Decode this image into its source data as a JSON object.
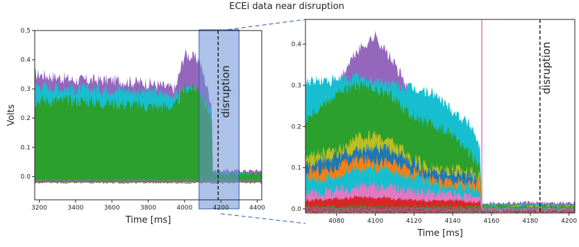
{
  "title": "ECEi data near disruption",
  "chart_data": [
    {
      "type": "line",
      "title": "",
      "xlabel": "Time [ms]",
      "ylabel": "Volts",
      "xlim": [
        3175,
        4425
      ],
      "ylim": [
        -0.08,
        0.5
      ],
      "xticks": [
        3200,
        3400,
        3600,
        3800,
        4000,
        4200,
        4400
      ],
      "yticks": [
        0.0,
        0.1,
        0.2,
        0.3,
        0.4,
        0.5
      ],
      "grid": false,
      "highlight_window": [
        4080,
        4300
      ],
      "disruption_time": 4185,
      "annotation": "disruption",
      "series_colors": [
        "#9467bd",
        "#17becf",
        "#2ca02c",
        "#bcbd22",
        "#1f77b4",
        "#d62728",
        "#ff7f0e",
        "#e377c2",
        "#8c564b",
        "#7f7f7f"
      ],
      "series_envelopes": [
        {
          "color": "#9467bd",
          "x": [
            3200,
            3400,
            3600,
            3800,
            3950,
            4000,
            4080,
            4150,
            4155,
            4400
          ],
          "y": [
            0.35,
            0.33,
            0.33,
            0.32,
            0.3,
            0.42,
            0.4,
            0.25,
            0.02,
            0.02
          ]
        },
        {
          "color": "#17becf",
          "x": [
            3200,
            3400,
            3600,
            3800,
            3950,
            4000,
            4080,
            4150,
            4155,
            4400
          ],
          "y": [
            0.31,
            0.3,
            0.3,
            0.29,
            0.28,
            0.3,
            0.28,
            0.22,
            0.01,
            0.01
          ]
        },
        {
          "color": "#2ca02c",
          "x": [
            3200,
            3400,
            3600,
            3800,
            3950,
            4000,
            4080,
            4150,
            4155,
            4400
          ],
          "y": [
            0.26,
            0.26,
            0.25,
            0.24,
            0.24,
            0.3,
            0.3,
            0.2,
            0.01,
            0.01
          ]
        }
      ]
    },
    {
      "type": "line",
      "title": "",
      "xlabel": "Time [ms]",
      "ylabel": "",
      "xlim": [
        4064,
        4203
      ],
      "ylim": [
        -0.01,
        0.46
      ],
      "xticks": [
        4080,
        4100,
        4120,
        4140,
        4160,
        4180,
        4200
      ],
      "yticks": [
        0.0,
        0.1,
        0.2,
        0.3,
        0.4
      ],
      "grid": false,
      "disruption_time": 4185,
      "annotation": "disruption",
      "series_envelopes": [
        {
          "color": "#9467bd",
          "x": [
            4064,
            4080,
            4090,
            4100,
            4110,
            4120,
            4130,
            4140,
            4150,
            4154,
            4155,
            4203
          ],
          "y": [
            0.25,
            0.3,
            0.38,
            0.42,
            0.35,
            0.27,
            0.25,
            0.22,
            0.16,
            0.12,
            0.015,
            0.015
          ]
        },
        {
          "color": "#17becf",
          "x": [
            4064,
            4080,
            4090,
            4100,
            4110,
            4120,
            4130,
            4140,
            4150,
            4154,
            4155,
            4203
          ],
          "y": [
            0.31,
            0.31,
            0.32,
            0.31,
            0.3,
            0.29,
            0.28,
            0.24,
            0.2,
            0.15,
            0.01,
            0.01
          ]
        },
        {
          "color": "#2ca02c",
          "x": [
            4064,
            4080,
            4090,
            4100,
            4110,
            4120,
            4130,
            4140,
            4150,
            4154,
            4155,
            4203
          ],
          "y": [
            0.22,
            0.28,
            0.3,
            0.29,
            0.27,
            0.22,
            0.2,
            0.18,
            0.13,
            0.1,
            0.008,
            0.008
          ]
        },
        {
          "color": "#bcbd22",
          "x": [
            4064,
            4080,
            4090,
            4100,
            4110,
            4120,
            4130,
            4140,
            4150,
            4154,
            4155,
            4203
          ],
          "y": [
            0.13,
            0.14,
            0.17,
            0.18,
            0.16,
            0.12,
            0.1,
            0.1,
            0.09,
            0.08,
            0.006,
            0.006
          ]
        },
        {
          "color": "#1f77b4",
          "x": [
            4064,
            4080,
            4090,
            4100,
            4110,
            4120,
            4130,
            4140,
            4150,
            4154,
            4155,
            4203
          ],
          "y": [
            0.11,
            0.13,
            0.14,
            0.15,
            0.14,
            0.11,
            0.09,
            0.09,
            0.08,
            0.07,
            0.004,
            0.004
          ]
        },
        {
          "color": "#ff7f0e",
          "x": [
            4064,
            4080,
            4090,
            4100,
            4110,
            4120,
            4130,
            4140,
            4150,
            4154,
            4155,
            4203
          ],
          "y": [
            0.09,
            0.1,
            0.12,
            0.12,
            0.11,
            0.09,
            0.07,
            0.07,
            0.06,
            0.06,
            0.002,
            0.002
          ]
        },
        {
          "color": "#17becf",
          "x": [
            4064,
            4080,
            4090,
            4100,
            4110,
            4120,
            4130,
            4140,
            4150,
            4154,
            4155,
            4203
          ],
          "y": [
            0.07,
            0.08,
            0.1,
            0.1,
            0.09,
            0.08,
            0.06,
            0.06,
            0.05,
            0.05,
            0.0,
            0.0
          ]
        },
        {
          "color": "#e377c2",
          "x": [
            4064,
            4080,
            4090,
            4100,
            4110,
            4120,
            4130,
            4140,
            4150,
            4154,
            4155,
            4203
          ],
          "y": [
            0.035,
            0.045,
            0.055,
            0.055,
            0.05,
            0.045,
            0.04,
            0.035,
            0.03,
            0.03,
            -0.002,
            -0.002
          ]
        },
        {
          "color": "#d62728",
          "x": [
            4064,
            4080,
            4090,
            4100,
            4110,
            4120,
            4130,
            4140,
            4150,
            4154,
            4155,
            4203
          ],
          "y": [
            0.02,
            0.025,
            0.028,
            0.028,
            0.025,
            0.022,
            0.02,
            0.02,
            0.018,
            0.018,
            -0.004,
            -0.004
          ]
        }
      ],
      "spike": {
        "x": 4155,
        "y": [
          0.0,
          0.46
        ],
        "color": "#e377c2"
      }
    }
  ]
}
